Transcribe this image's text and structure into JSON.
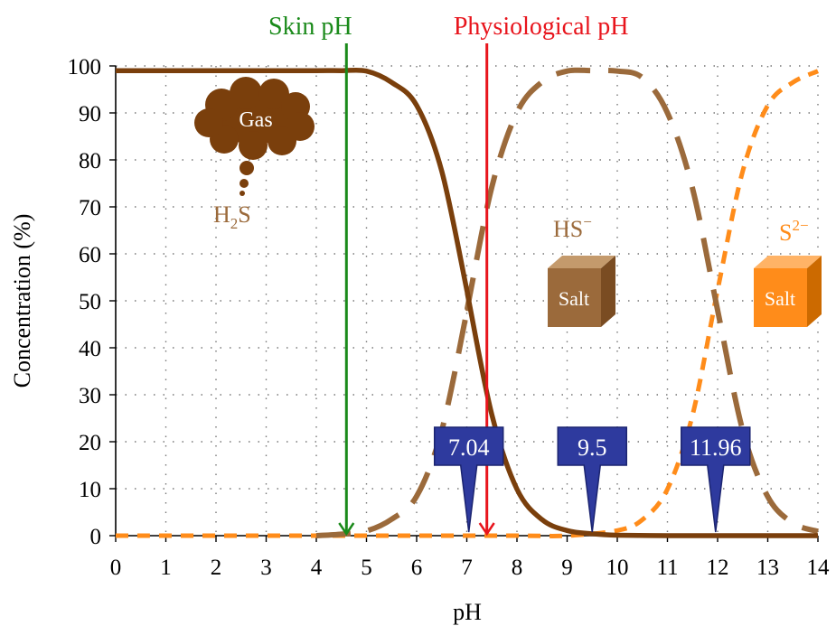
{
  "chart_data": {
    "type": "line",
    "xlabel": "pH",
    "ylabel": "Concentration (%)",
    "xlim": [
      0,
      14
    ],
    "ylim": [
      0,
      100
    ],
    "x_ticks": [
      0,
      1,
      2,
      3,
      4,
      5,
      6,
      7,
      8,
      9,
      10,
      11,
      12,
      13,
      14
    ],
    "y_ticks": [
      0,
      10,
      20,
      30,
      40,
      50,
      60,
      70,
      80,
      90,
      100
    ],
    "grid": "dotted",
    "pKa1": 7.04,
    "pKa2": 11.96,
    "series": [
      {
        "name": "H2S",
        "style": "solid",
        "color": "#7a3f0c",
        "x": [
          0,
          1,
          2,
          3,
          4,
          4.5,
          5,
          5.5,
          6,
          6.5,
          7,
          7.04,
          7.5,
          8,
          8.5,
          9,
          9.5,
          10,
          11,
          12,
          13,
          14
        ],
        "y": [
          99,
          99,
          99,
          99,
          99,
          99,
          98.9,
          96.5,
          91.6,
          77.6,
          52.3,
          50,
          25.7,
          9.9,
          3.4,
          1.1,
          0.4,
          0.1,
          0,
          0,
          0,
          0
        ]
      },
      {
        "name": "HS−",
        "style": "long-dash",
        "color": "#9b6a3b",
        "x": [
          4,
          4.5,
          5,
          5.5,
          6,
          6.5,
          7,
          7.04,
          7.5,
          8,
          8.5,
          9,
          9.5,
          10,
          10.5,
          11,
          11.5,
          12,
          12.5,
          13,
          13.5,
          14
        ],
        "y": [
          0,
          0.3,
          1,
          3.5,
          8.4,
          22.4,
          47.7,
          50,
          74.3,
          90.1,
          96.6,
          98.9,
          99,
          98.9,
          97.5,
          90,
          73.9,
          48,
          22.4,
          8.3,
          2.7,
          0.9
        ]
      },
      {
        "name": "S2−",
        "style": "short-dash",
        "color": "#ff8c1a",
        "x": [
          0,
          2,
          4,
          6,
          8,
          9,
          10,
          10.5,
          11,
          11.5,
          12,
          12.5,
          13,
          13.5,
          14
        ],
        "y": [
          0,
          0,
          0,
          0,
          0,
          0,
          1.1,
          3.4,
          9.9,
          25.7,
          52.3,
          77.6,
          91.6,
          96.5,
          98.9
        ]
      }
    ],
    "vertical_lines": [
      {
        "label": "Skin pH",
        "x": 4.6,
        "color": "#1a8a1a"
      },
      {
        "label": "Physiological pH",
        "x": 7.4,
        "color": "#e8141c"
      }
    ],
    "callouts": [
      {
        "text": "7.04",
        "x": 7.04
      },
      {
        "text": "9.5",
        "x": 9.5
      },
      {
        "text": "11.96",
        "x": 11.96
      }
    ],
    "annotations": {
      "gas_cloud": "Gas",
      "h2s_label": {
        "base": "H",
        "sub": "2",
        "tail": "S"
      },
      "hs_label": {
        "base": "HS",
        "sup": "−"
      },
      "s2_label": {
        "base": "S",
        "sup": "2−"
      },
      "salt_box_1": "Salt",
      "salt_box_2": "Salt"
    }
  }
}
